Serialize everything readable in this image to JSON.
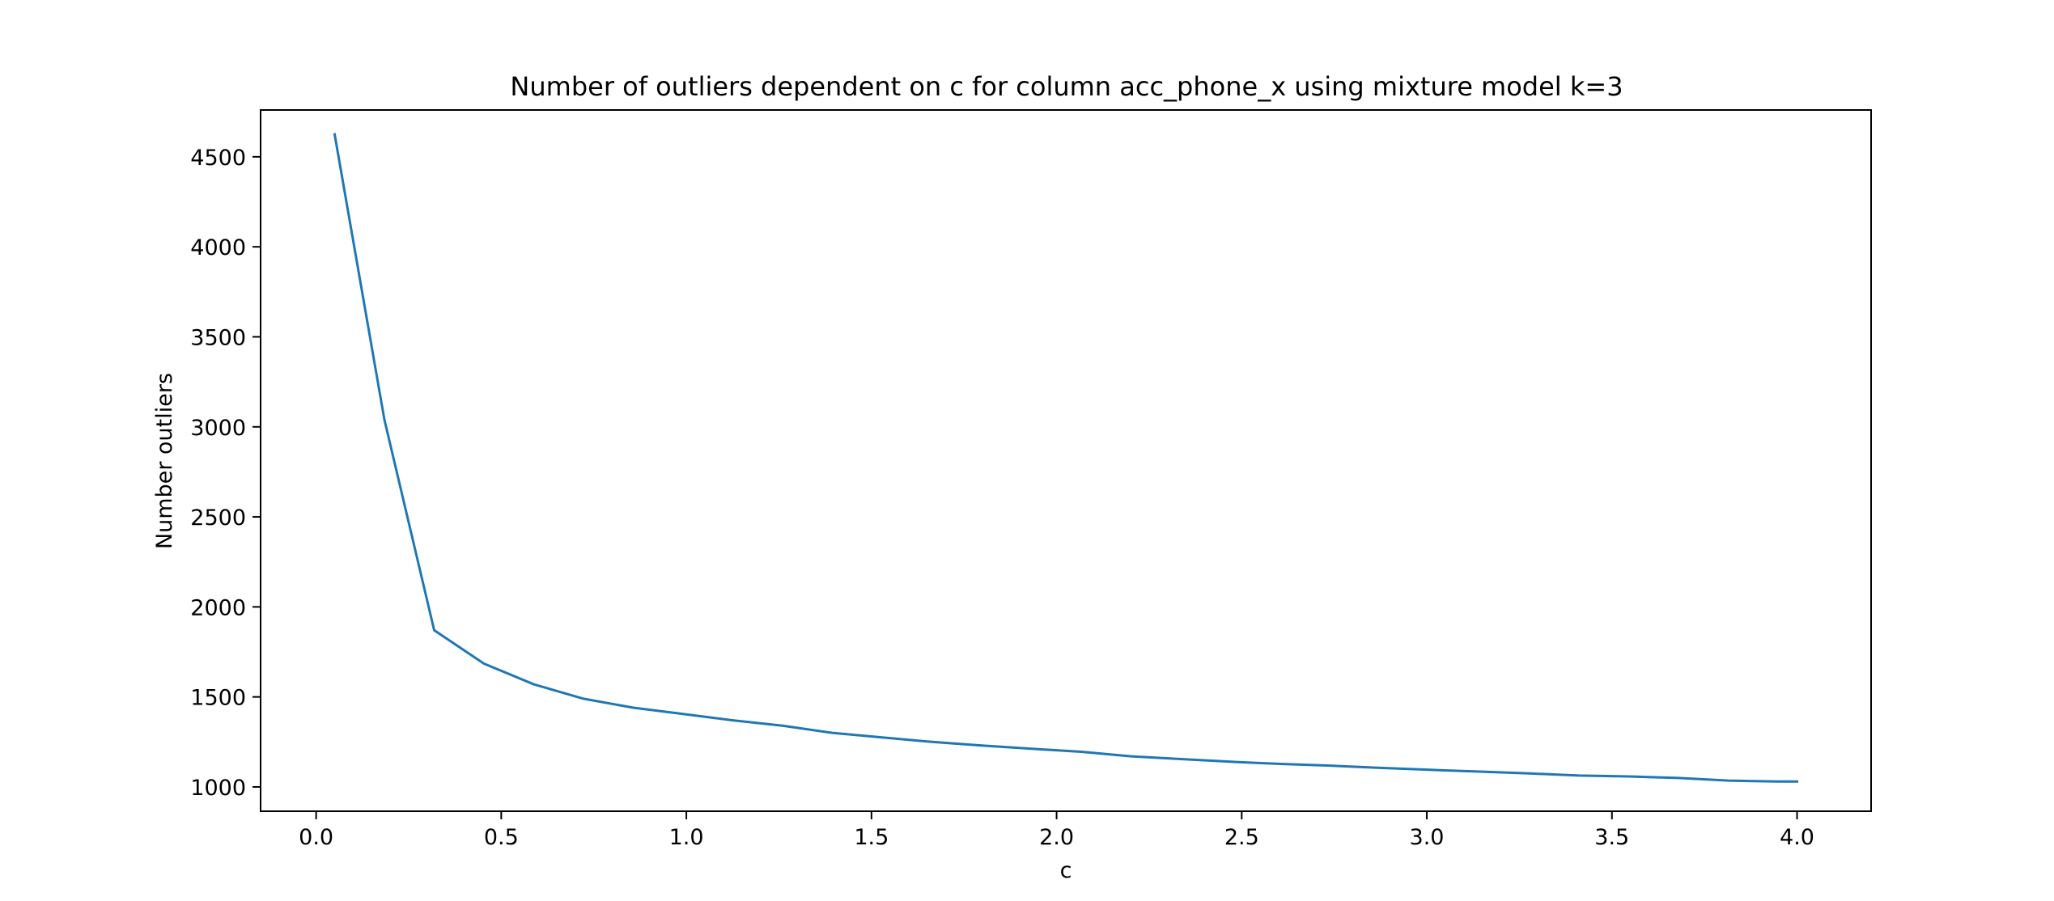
{
  "chart_data": {
    "type": "line",
    "title": "Number of outliers dependent on c for column acc_phone_x using mixture model k=3",
    "xlabel": "c",
    "ylabel": "Number outliers",
    "xlim": [
      -0.15,
      4.2
    ],
    "ylim": [
      865,
      4760
    ],
    "xticks": [
      0.0,
      0.5,
      1.0,
      1.5,
      2.0,
      2.5,
      3.0,
      3.5,
      4.0
    ],
    "xtick_labels": [
      "0.0",
      "0.5",
      "1.0",
      "1.5",
      "2.0",
      "2.5",
      "3.0",
      "3.5",
      "4.0"
    ],
    "yticks": [
      1000,
      1500,
      2000,
      2500,
      3000,
      3500,
      4000,
      4500
    ],
    "ytick_labels": [
      "1000",
      "1500",
      "2000",
      "2500",
      "3000",
      "3500",
      "4000",
      "4500"
    ],
    "grid": false,
    "series": [
      {
        "color": "#1f77b4",
        "x": [
          0.05,
          0.1844,
          0.3189,
          0.4533,
          0.5878,
          0.7222,
          0.8567,
          0.9911,
          1.1256,
          1.26,
          1.3944,
          1.5289,
          1.6633,
          1.7978,
          1.9322,
          2.0667,
          2.2011,
          2.3356,
          2.47,
          2.6044,
          2.7389,
          2.8733,
          3.0078,
          3.1422,
          3.2767,
          3.4111,
          3.5456,
          3.68,
          3.8144,
          3.9489,
          4.0
        ],
        "y": [
          4625,
          3040,
          1870,
          1685,
          1570,
          1490,
          1440,
          1405,
          1370,
          1340,
          1300,
          1275,
          1250,
          1230,
          1212,
          1195,
          1170,
          1155,
          1140,
          1128,
          1118,
          1106,
          1095,
          1085,
          1075,
          1063,
          1058,
          1050,
          1035,
          1030,
          1030
        ]
      }
    ]
  }
}
